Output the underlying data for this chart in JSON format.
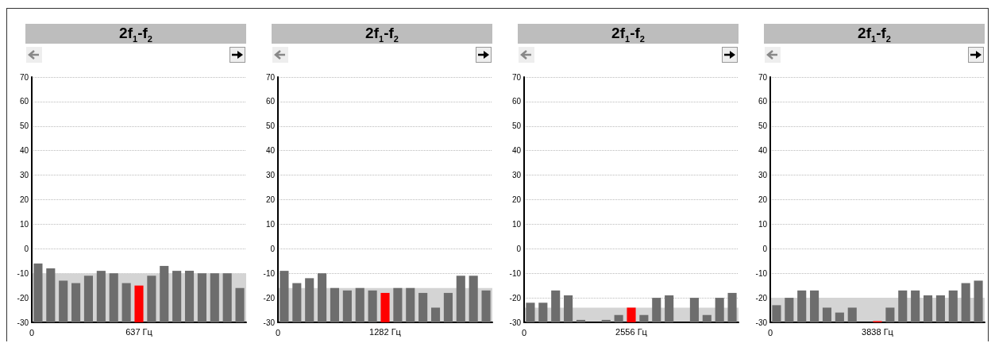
{
  "chart_data": [
    {
      "type": "bar",
      "title": "2f$_{1}$-f$_{2}$",
      "categories": [
        null,
        null,
        null,
        null,
        null,
        null,
        null,
        null,
        "637 Гц",
        null,
        null,
        null,
        null,
        null,
        null,
        null,
        null
      ],
      "colors": [
        "#6d6d6d",
        "#6d6d6d",
        "#6d6d6d",
        "#6d6d6d",
        "#6d6d6d",
        "#6d6d6d",
        "#6d6d6d",
        "#6d6d6d",
        "#ff0000",
        "#6d6d6d",
        "#6d6d6d",
        "#6d6d6d",
        "#6d6d6d",
        "#6d6d6d",
        "#6d6d6d",
        "#6d6d6d",
        "#6d6d6d"
      ],
      "base": [
        -30,
        -30,
        -30,
        -30,
        -30,
        -30,
        -30,
        -30,
        -30,
        -30,
        -30,
        -30,
        -30,
        -30,
        -30,
        -30,
        -30
      ],
      "values": [
        24,
        22,
        17,
        16,
        19,
        21,
        20,
        16,
        15,
        19,
        23,
        21,
        21,
        20,
        20,
        20,
        14
      ],
      "ylim": [
        -30,
        70
      ],
      "yticks": [
        -30,
        -20,
        -10,
        0,
        10,
        20,
        30,
        40,
        50,
        60,
        70
      ],
      "grid": "y",
      "bands": [
        {
          "axis": "y",
          "from": -30,
          "to": -10,
          "color": "#d4d4d4"
        }
      ],
      "annotations": [
        "0"
      ]
    },
    {
      "type": "bar",
      "title": "2f$_{1}$-f$_{2}$",
      "categories": [
        null,
        null,
        null,
        null,
        null,
        null,
        null,
        null,
        "1282 Гц",
        null,
        null,
        null,
        null,
        null,
        null,
        null,
        null
      ],
      "colors": [
        "#6d6d6d",
        "#6d6d6d",
        "#6d6d6d",
        "#6d6d6d",
        "#6d6d6d",
        "#6d6d6d",
        "#6d6d6d",
        "#6d6d6d",
        "#ff0000",
        "#6d6d6d",
        "#6d6d6d",
        "#6d6d6d",
        "#6d6d6d",
        "#6d6d6d",
        "#6d6d6d",
        "#6d6d6d",
        "#6d6d6d"
      ],
      "base": [
        -30,
        -30,
        -30,
        -30,
        -30,
        -30,
        -30,
        -30,
        -30,
        -30,
        -30,
        -30,
        -30,
        -30,
        -30,
        -30,
        -30
      ],
      "values": [
        21,
        16,
        18,
        20,
        14,
        13,
        14,
        13,
        12,
        14,
        14,
        12,
        6,
        12,
        19,
        19,
        13
      ],
      "ylim": [
        -30,
        70
      ],
      "yticks": [
        -30,
        -20,
        -10,
        0,
        10,
        20,
        30,
        40,
        50,
        60,
        70
      ],
      "grid": "y",
      "bands": [
        {
          "axis": "y",
          "from": -30,
          "to": -16,
          "color": "#d4d4d4"
        }
      ],
      "annotations": [
        "0"
      ]
    },
    {
      "type": "bar",
      "title": "2f$_{1}$-f$_{2}$",
      "categories": [
        null,
        null,
        null,
        null,
        null,
        null,
        null,
        null,
        "2556 Гц",
        null,
        null,
        null,
        null,
        null,
        null,
        null,
        null
      ],
      "colors": [
        "#6d6d6d",
        "#6d6d6d",
        "#6d6d6d",
        "#6d6d6d",
        "#6d6d6d",
        null,
        "#6d6d6d",
        "#6d6d6d",
        "#ff0000",
        "#6d6d6d",
        "#6d6d6d",
        "#6d6d6d",
        null,
        "#6d6d6d",
        "#6d6d6d",
        "#6d6d6d",
        "#6d6d6d"
      ],
      "base": [
        -30,
        -30,
        -30,
        -30,
        -30,
        null,
        -30,
        -30,
        -30,
        -30,
        -30,
        -30,
        null,
        -30,
        -30,
        -30,
        -30
      ],
      "values": [
        8,
        8,
        13,
        11,
        1,
        null,
        1,
        3,
        6,
        3,
        10,
        11,
        null,
        10,
        3,
        10,
        12
      ],
      "ylim": [
        -30,
        70
      ],
      "yticks": [
        -30,
        -20,
        -10,
        0,
        10,
        20,
        30,
        40,
        50,
        60,
        70
      ],
      "grid": "y",
      "bands": [
        {
          "axis": "y",
          "from": -30,
          "to": -24,
          "color": "#d4d4d4"
        }
      ],
      "annotations": [
        "0"
      ]
    },
    {
      "type": "bar",
      "title": "2f$_{1}$-f$_{2}$",
      "categories": [
        null,
        null,
        null,
        null,
        null,
        null,
        null,
        null,
        "3838 Гц",
        null,
        null,
        null,
        null,
        null,
        null,
        null,
        null
      ],
      "colors": [
        "#6d6d6d",
        "#6d6d6d",
        "#6d6d6d",
        "#6d6d6d",
        "#6d6d6d",
        "#6d6d6d",
        "#6d6d6d",
        null,
        "#ff0000",
        "#6d6d6d",
        "#6d6d6d",
        "#6d6d6d",
        "#6d6d6d",
        "#6d6d6d",
        "#6d6d6d",
        "#6d6d6d",
        "#6d6d6d"
      ],
      "base": [
        -30,
        -30,
        -30,
        -30,
        -30,
        -30,
        -30,
        null,
        -30,
        -30,
        -30,
        -30,
        -30,
        -30,
        -30,
        -30,
        -30
      ],
      "values": [
        7,
        10,
        13,
        13,
        6,
        4,
        6,
        null,
        0.5,
        6,
        13,
        13,
        11,
        11,
        13,
        16,
        17
      ],
      "ylim": [
        -30,
        70
      ],
      "yticks": [
        -30,
        -20,
        -10,
        0,
        10,
        20,
        30,
        40,
        50,
        60,
        70
      ],
      "grid": "y",
      "bands": [
        {
          "axis": "y",
          "from": -30,
          "to": -20,
          "color": "#d4d4d4"
        }
      ],
      "annotations": [
        "0"
      ]
    }
  ]
}
